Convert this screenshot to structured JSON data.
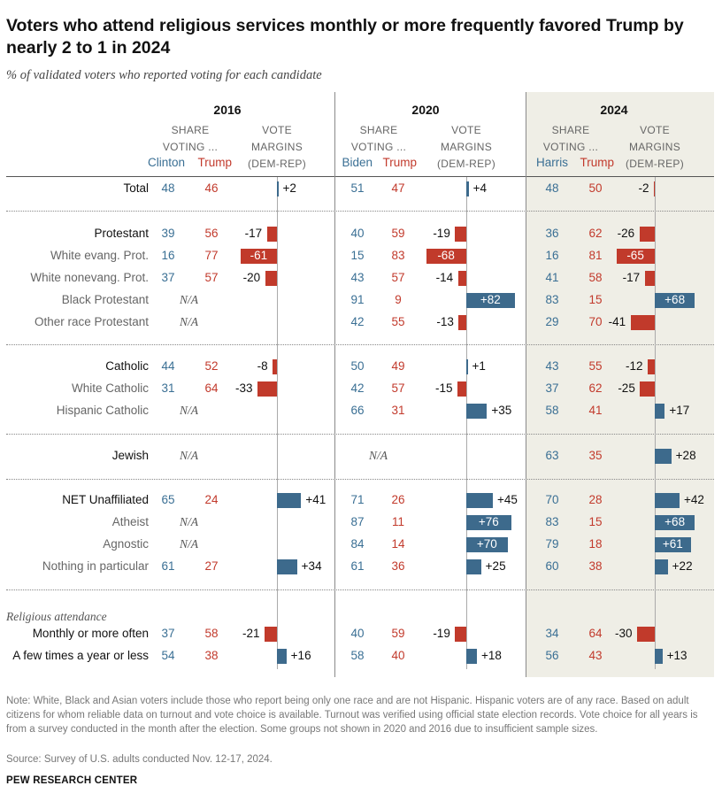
{
  "title": "Voters who attend religious services monthly or more frequently favored Trump by nearly 2 to 1 in 2024",
  "subtitle": "% of validated voters who reported voting for each candidate",
  "colors": {
    "dem": "#3d6a8c",
    "rep": "#c13a2b",
    "shade": "#efeee6"
  },
  "col_headers": {
    "share": "SHARE\nVOTING ...",
    "margins": "VOTE\nMARGINS\n(DEM-REP)"
  },
  "chart_data": {
    "type": "table",
    "years": [
      {
        "year": "2016",
        "dem": "Clinton",
        "rep": "Trump"
      },
      {
        "year": "2020",
        "dem": "Biden",
        "rep": "Trump"
      },
      {
        "year": "2024",
        "dem": "Harris",
        "rep": "Trump"
      }
    ],
    "sections": [
      {
        "title": "",
        "rows": [
          {
            "label": "Total",
            "style": "main",
            "values": [
              {
                "dem": "48",
                "rep": "46",
                "margin": 2,
                "margin_label": "+2"
              },
              {
                "dem": "51",
                "rep": "47",
                "margin": 4,
                "margin_label": "+4"
              },
              {
                "dem": "48",
                "rep": "50",
                "margin": -2,
                "margin_label": "-2"
              }
            ]
          }
        ]
      },
      {
        "title": "",
        "rows": [
          {
            "label": "Protestant",
            "style": "main",
            "values": [
              {
                "dem": "39",
                "rep": "56",
                "margin": -17,
                "margin_label": "-17"
              },
              {
                "dem": "40",
                "rep": "59",
                "margin": -19,
                "margin_label": "-19"
              },
              {
                "dem": "36",
                "rep": "62",
                "margin": -26,
                "margin_label": "-26"
              }
            ]
          },
          {
            "label": "White evang. Prot.",
            "style": "sub",
            "values": [
              {
                "dem": "16",
                "rep": "77",
                "margin": -61,
                "margin_label": "-61"
              },
              {
                "dem": "15",
                "rep": "83",
                "margin": -68,
                "margin_label": "-68"
              },
              {
                "dem": "16",
                "rep": "81",
                "margin": -65,
                "margin_label": "-65"
              }
            ]
          },
          {
            "label": "White nonevang. Prot.",
            "style": "sub",
            "values": [
              {
                "dem": "37",
                "rep": "57",
                "margin": -20,
                "margin_label": "-20"
              },
              {
                "dem": "43",
                "rep": "57",
                "margin": -14,
                "margin_label": "-14"
              },
              {
                "dem": "41",
                "rep": "58",
                "margin": -17,
                "margin_label": "-17"
              }
            ]
          },
          {
            "label": "Black Protestant",
            "style": "sub",
            "values": [
              {
                "na": "N/A"
              },
              {
                "dem": "91",
                "rep": "9",
                "margin": 82,
                "margin_label": "+82"
              },
              {
                "dem": "83",
                "rep": "15",
                "margin": 68,
                "margin_label": "+68"
              }
            ]
          },
          {
            "label": "Other race Protestant",
            "style": "sub",
            "values": [
              {
                "na": "N/A"
              },
              {
                "dem": "42",
                "rep": "55",
                "margin": -13,
                "margin_label": "-13"
              },
              {
                "dem": "29",
                "rep": "70",
                "margin": -41,
                "margin_label": "-41"
              }
            ]
          }
        ]
      },
      {
        "title": "",
        "rows": [
          {
            "label": "Catholic",
            "style": "main",
            "values": [
              {
                "dem": "44",
                "rep": "52",
                "margin": -8,
                "margin_label": "-8"
              },
              {
                "dem": "50",
                "rep": "49",
                "margin": 1,
                "margin_label": "+1"
              },
              {
                "dem": "43",
                "rep": "55",
                "margin": -12,
                "margin_label": "-12"
              }
            ]
          },
          {
            "label": "White Catholic",
            "style": "sub",
            "values": [
              {
                "dem": "31",
                "rep": "64",
                "margin": -33,
                "margin_label": "-33"
              },
              {
                "dem": "42",
                "rep": "57",
                "margin": -15,
                "margin_label": "-15"
              },
              {
                "dem": "37",
                "rep": "62",
                "margin": -25,
                "margin_label": "-25"
              }
            ]
          },
          {
            "label": "Hispanic Catholic",
            "style": "sub",
            "values": [
              {
                "na": "N/A"
              },
              {
                "dem": "66",
                "rep": "31",
                "margin": 35,
                "margin_label": "+35"
              },
              {
                "dem": "58",
                "rep": "41",
                "margin": 17,
                "margin_label": "+17"
              }
            ]
          }
        ]
      },
      {
        "title": "",
        "rows": [
          {
            "label": "Jewish",
            "style": "main",
            "values": [
              {
                "na": "N/A"
              },
              {
                "na": "N/A"
              },
              {
                "dem": "63",
                "rep": "35",
                "margin": 28,
                "margin_label": "+28"
              }
            ]
          }
        ]
      },
      {
        "title": "",
        "rows": [
          {
            "label": "NET Unaffiliated",
            "style": "main",
            "values": [
              {
                "dem": "65",
                "rep": "24",
                "margin": 41,
                "margin_label": "+41"
              },
              {
                "dem": "71",
                "rep": "26",
                "margin": 45,
                "margin_label": "+45"
              },
              {
                "dem": "70",
                "rep": "28",
                "margin": 42,
                "margin_label": "+42"
              }
            ]
          },
          {
            "label": "Atheist",
            "style": "sub",
            "values": [
              {
                "na": "N/A"
              },
              {
                "dem": "87",
                "rep": "11",
                "margin": 76,
                "margin_label": "+76"
              },
              {
                "dem": "83",
                "rep": "15",
                "margin": 68,
                "margin_label": "+68"
              }
            ]
          },
          {
            "label": "Agnostic",
            "style": "sub",
            "values": [
              {
                "na": "N/A"
              },
              {
                "dem": "84",
                "rep": "14",
                "margin": 70,
                "margin_label": "+70"
              },
              {
                "dem": "79",
                "rep": "18",
                "margin": 61,
                "margin_label": "+61"
              }
            ]
          },
          {
            "label": "Nothing in particular",
            "style": "sub",
            "values": [
              {
                "dem": "61",
                "rep": "27",
                "margin": 34,
                "margin_label": "+34"
              },
              {
                "dem": "61",
                "rep": "36",
                "margin": 25,
                "margin_label": "+25"
              },
              {
                "dem": "60",
                "rep": "38",
                "margin": 22,
                "margin_label": "+22"
              }
            ]
          }
        ]
      },
      {
        "title": "Religious attendance",
        "rows": [
          {
            "label": "Monthly or more often",
            "style": "main",
            "values": [
              {
                "dem": "37",
                "rep": "58",
                "margin": -21,
                "margin_label": "-21"
              },
              {
                "dem": "40",
                "rep": "59",
                "margin": -19,
                "margin_label": "-19"
              },
              {
                "dem": "34",
                "rep": "64",
                "margin": -30,
                "margin_label": "-30"
              }
            ]
          },
          {
            "label": "A few times a year or less",
            "style": "main",
            "values": [
              {
                "dem": "54",
                "rep": "38",
                "margin": 16,
                "margin_label": "+16"
              },
              {
                "dem": "58",
                "rep": "40",
                "margin": 18,
                "margin_label": "+18"
              },
              {
                "dem": "56",
                "rep": "43",
                "margin": 13,
                "margin_label": "+13"
              }
            ]
          }
        ]
      }
    ]
  },
  "note": "Note: White, Black and Asian voters include those who report being only one race and are not Hispanic. Hispanic voters are of any race. Based on adult citizens for whom reliable data on turnout and vote choice is available. Turnout was verified using official state election records. Vote choice for all years is from a survey conducted in the month after the election. Some groups not shown in 2020 and 2016 due to insufficient sample sizes.",
  "source": "Source: Survey of U.S. adults conducted Nov. 12-17, 2024.",
  "footer": "PEW RESEARCH CENTER"
}
